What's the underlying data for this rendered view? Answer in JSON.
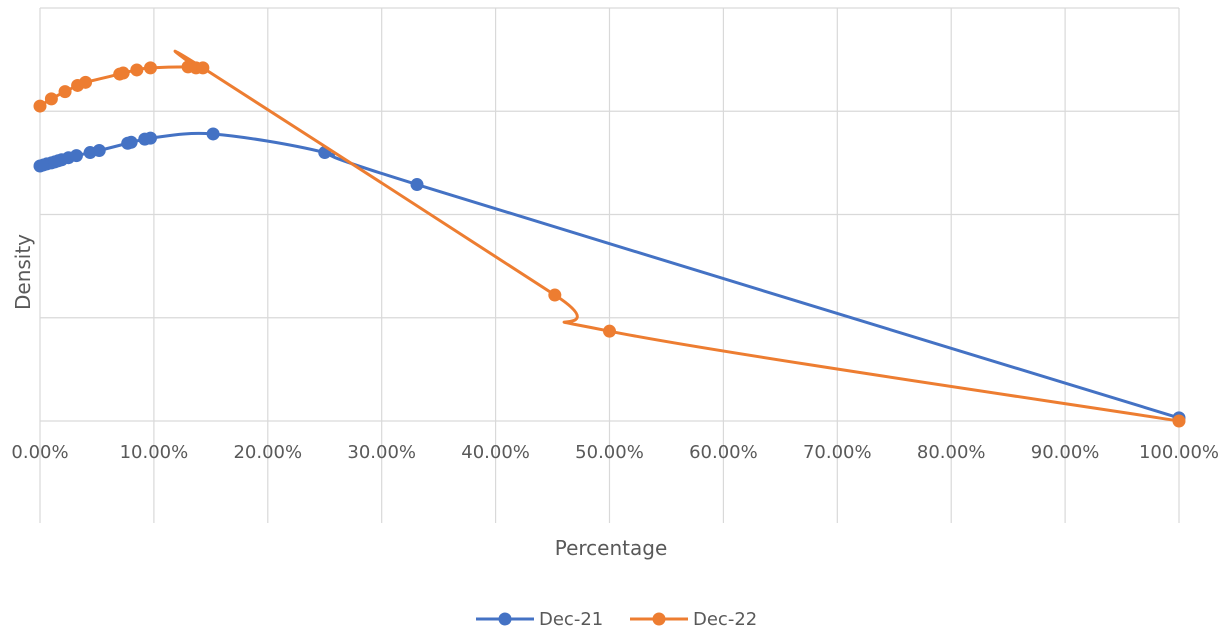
{
  "chart_data": {
    "type": "scatter",
    "title": "",
    "xlabel": "Percentage",
    "ylabel": "Density",
    "xlim": [
      0,
      1
    ],
    "ylim": [
      0,
      4
    ],
    "grid": true,
    "legend_position": "bottom",
    "x_tick_labels": [
      "0.00%",
      "10.00%",
      "20.00%",
      "30.00%",
      "40.00%",
      "50.00%",
      "60.00%",
      "70.00%",
      "80.00%",
      "90.00%",
      "100.00%"
    ],
    "series": [
      {
        "name": "Dec-21",
        "color": "#4472C4",
        "marker": "circle",
        "line": "smooth",
        "points": [
          [
            0.0,
            2.47
          ],
          [
            0.003,
            2.48
          ],
          [
            0.006,
            2.49
          ],
          [
            0.01,
            2.5
          ],
          [
            0.013,
            2.51
          ],
          [
            0.016,
            2.52
          ],
          [
            0.019,
            2.53
          ],
          [
            0.025,
            2.55
          ],
          [
            0.032,
            2.57
          ],
          [
            0.044,
            2.6
          ],
          [
            0.052,
            2.62
          ],
          [
            0.077,
            2.69
          ],
          [
            0.08,
            2.7
          ],
          [
            0.092,
            2.73
          ],
          [
            0.097,
            2.74
          ],
          [
            0.152,
            2.78
          ],
          [
            0.25,
            2.6
          ],
          [
            0.331,
            2.29
          ],
          [
            1.0,
            0.03
          ]
        ]
      },
      {
        "name": "Dec-22",
        "color": "#ED7D31",
        "marker": "circle",
        "line": "smooth",
        "points": [
          [
            0.0,
            3.05
          ],
          [
            0.01,
            3.12
          ],
          [
            0.022,
            3.19
          ],
          [
            0.033,
            3.25
          ],
          [
            0.04,
            3.28
          ],
          [
            0.07,
            3.36
          ],
          [
            0.073,
            3.37
          ],
          [
            0.085,
            3.4
          ],
          [
            0.097,
            3.42
          ],
          [
            0.13,
            3.43
          ],
          [
            0.137,
            3.42
          ],
          [
            0.143,
            3.42
          ],
          [
            0.452,
            1.22
          ],
          [
            0.5,
            0.87
          ],
          [
            1.0,
            0.0
          ]
        ]
      }
    ]
  }
}
